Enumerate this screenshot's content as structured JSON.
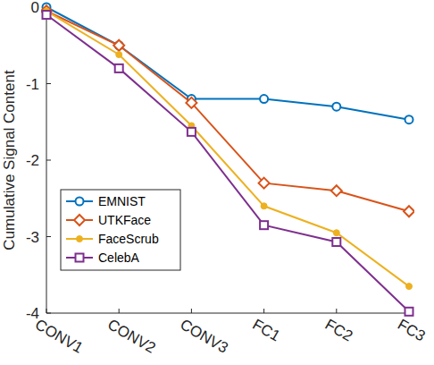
{
  "chart_data": {
    "type": "line",
    "y_label": "Cumulative Signal Content",
    "categories": [
      "CONV1",
      "CONV2",
      "CONV3",
      "FC1",
      "FC2",
      "FC3"
    ],
    "ylim": [
      -4,
      0
    ],
    "yticks": [
      -4,
      -3,
      -2,
      -1,
      0
    ],
    "grid": false,
    "legend": "left",
    "series": [
      {
        "name": "EMNIST",
        "color": "#0072bd",
        "marker": "circle",
        "values": [
          0,
          -0.5,
          -1.2,
          -1.2,
          -1.3,
          -1.47
        ]
      },
      {
        "name": "UTKFace",
        "color": "#d95319",
        "marker": "diamond",
        "values": [
          -0.05,
          -0.5,
          -1.25,
          -2.3,
          -2.4,
          -2.67
        ]
      },
      {
        "name": "FaceScrub",
        "color": "#edb120",
        "marker": "dot",
        "values": [
          -0.05,
          -0.62,
          -1.55,
          -2.6,
          -2.95,
          -3.65
        ]
      },
      {
        "name": "CelebA",
        "color": "#7e2f8e",
        "marker": "square",
        "values": [
          -0.1,
          -0.8,
          -1.63,
          -2.85,
          -3.07,
          -3.98
        ]
      }
    ]
  }
}
